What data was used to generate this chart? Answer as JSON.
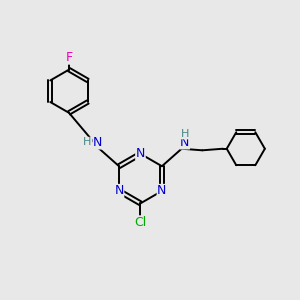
{
  "bg_color": "#e8e8e8",
  "atom_colors": {
    "C": "#000000",
    "N": "#0000cc",
    "Cl": "#00aa00",
    "F": "#ee00bb",
    "H": "#448888"
  },
  "line_color": "#000000",
  "line_width": 1.4,
  "font_size": 9
}
